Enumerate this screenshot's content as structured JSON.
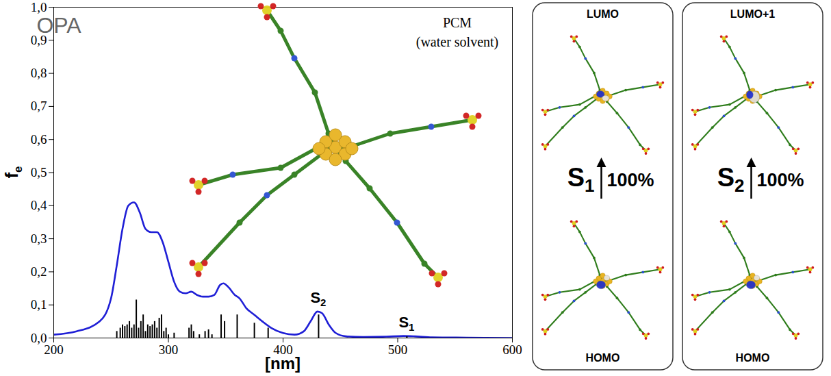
{
  "chart_data": {
    "type": "line",
    "corner_text": "OPA",
    "inset_text": [
      "PCM",
      "(water solvent)"
    ],
    "xlabel": "[nm]",
    "ylabel": {
      "text": "f",
      "subscript": "e"
    },
    "xlim": [
      200,
      600
    ],
    "xticks": [
      200,
      300,
      400,
      500,
      600
    ],
    "ylim": [
      0,
      1
    ],
    "yticks": [
      {
        "value": 0,
        "label": "0,0"
      },
      {
        "value": 0.1,
        "label": "0,1"
      },
      {
        "value": 0.2,
        "label": "0,2"
      },
      {
        "value": 0.3,
        "label": "0,3"
      },
      {
        "value": 0.4,
        "label": "0,4"
      },
      {
        "value": 0.5,
        "label": "0,5"
      },
      {
        "value": 0.6,
        "label": "0,6"
      },
      {
        "value": 0.7,
        "label": "0,7"
      },
      {
        "value": 0.8,
        "label": "0,8"
      },
      {
        "value": 0.9,
        "label": "0,9"
      },
      {
        "value": 1,
        "label": "1,0"
      }
    ],
    "grid": false,
    "series": [
      {
        "type": "line",
        "color": "#1f1fd6",
        "x": [
          200,
          220,
          240,
          250,
          255,
          260,
          265,
          270,
          275,
          280,
          285,
          290,
          295,
          300,
          305,
          310,
          315,
          320,
          325,
          330,
          335,
          340,
          345,
          348,
          352,
          358,
          362,
          368,
          375,
          382,
          390,
          400,
          410,
          418,
          424,
          430,
          434,
          440,
          446,
          455,
          470,
          490,
          505,
          515,
          530,
          560,
          600
        ],
        "values": [
          0.01,
          0.02,
          0.05,
          0.12,
          0.22,
          0.33,
          0.4,
          0.41,
          0.38,
          0.33,
          0.32,
          0.32,
          0.29,
          0.23,
          0.17,
          0.14,
          0.135,
          0.14,
          0.13,
          0.125,
          0.125,
          0.13,
          0.16,
          0.165,
          0.155,
          0.13,
          0.12,
          0.09,
          0.07,
          0.05,
          0.03,
          0.015,
          0.01,
          0.02,
          0.05,
          0.08,
          0.075,
          0.04,
          0.015,
          0.005,
          0.003,
          0.004,
          0.006,
          0.005,
          0.002,
          0.001,
          0
        ]
      },
      {
        "type": "bar",
        "color": "#000000",
        "x": [
          255,
          258,
          260,
          262,
          264,
          266,
          268,
          270,
          272,
          274,
          276,
          278,
          280,
          282,
          284,
          286,
          288,
          290,
          292,
          294,
          296,
          298,
          300,
          305,
          318,
          320,
          322,
          327,
          332,
          335,
          338,
          346,
          349,
          360,
          375,
          387,
          431,
          508
        ],
        "values": [
          0.02,
          0.03,
          0.04,
          0.035,
          0.04,
          0.05,
          0.03,
          0.04,
          0.115,
          0.03,
          0.05,
          0.07,
          0.02,
          0.04,
          0.035,
          0.04,
          0.05,
          0.03,
          0.06,
          0.07,
          0.02,
          0.03,
          0.01,
          0.015,
          0.03,
          0.04,
          0.02,
          0.01,
          0.02,
          0.025,
          0.01,
          0.07,
          0.05,
          0.07,
          0.045,
          0.03,
          0.07,
          0.004
        ]
      }
    ],
    "annotations": [
      {
        "text": "S",
        "subscript": "2",
        "x": 431
      },
      {
        "text": "S",
        "subscript": "1",
        "x": 508
      }
    ]
  },
  "panels": [
    {
      "top": "LUMO",
      "transition": {
        "text": "S",
        "subscript": "1"
      },
      "percent": "100%",
      "bottom": "HOMO"
    },
    {
      "top": "LUMO+1",
      "transition": {
        "text": "S",
        "subscript": "2"
      },
      "percent": "100%",
      "bottom": "HOMO"
    }
  ]
}
